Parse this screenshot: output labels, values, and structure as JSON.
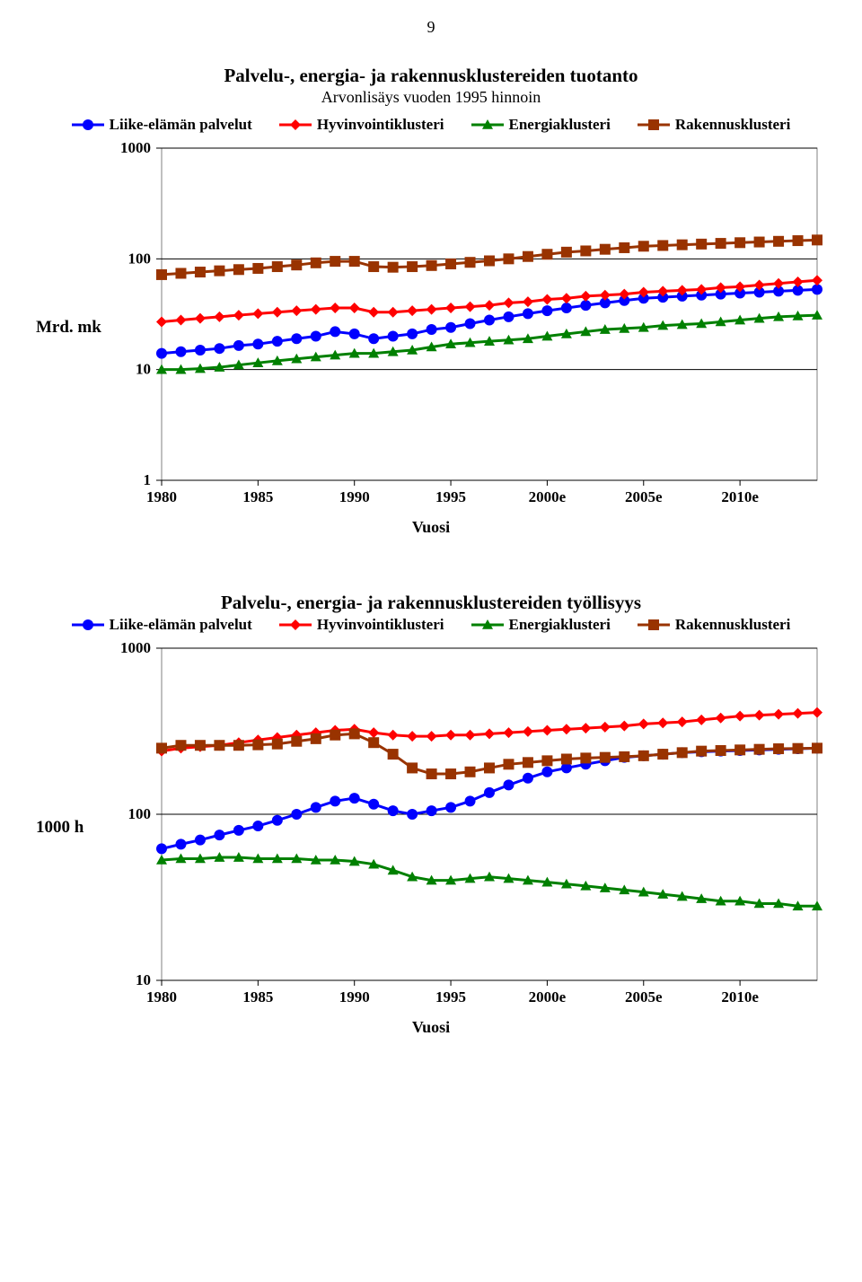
{
  "page_number": "9",
  "chart1": {
    "type": "line",
    "title": "Palvelu-, energia- ja rakennusklustereiden tuotanto",
    "subtitle": "Arvonlisäys vuoden 1995 hinnoin",
    "y_label": "Mrd. mk",
    "x_label": "Vuosi",
    "x_ticks": [
      "1980",
      "1985",
      "1990",
      "1995",
      "2000e",
      "2005e",
      "2010e"
    ],
    "y_ticks": [
      1,
      10,
      100,
      1000
    ],
    "y_tick_labels": [
      "1",
      "10",
      "100",
      "1000"
    ],
    "y_scale": "log",
    "ylim": [
      1,
      1000
    ],
    "xlim": [
      1980,
      2014
    ],
    "x_tick_positions": [
      1980,
      1985,
      1990,
      1995,
      2000,
      2005,
      2010
    ],
    "line_width": 3,
    "marker_size": 6,
    "background_color": "#ffffff",
    "grid_color": "#000000",
    "border_color": "#808080",
    "tick_fontsize": 17,
    "series": [
      {
        "name": "Liike-elämän palvelut",
        "legend_label": "Liike-elämän palvelut",
        "color": "#0000ff",
        "marker": "circle",
        "x": [
          1980,
          1981,
          1982,
          1983,
          1984,
          1985,
          1986,
          1987,
          1988,
          1989,
          1990,
          1991,
          1992,
          1993,
          1994,
          1995,
          1996,
          1997,
          1998,
          1999,
          2000,
          2001,
          2002,
          2003,
          2004,
          2005,
          2006,
          2007,
          2008,
          2009,
          2010,
          2011,
          2012,
          2013,
          2014
        ],
        "y": [
          14,
          14.5,
          15,
          15.5,
          16.5,
          17,
          18,
          19,
          20,
          22,
          21,
          19,
          20,
          21,
          23,
          24,
          26,
          28,
          30,
          32,
          34,
          36,
          38,
          40,
          42,
          44,
          45,
          46,
          47,
          48,
          49,
          50,
          51,
          52,
          53
        ]
      },
      {
        "name": "Hyvinvointiklusteri",
        "legend_label": "Hyvinvointiklusteri",
        "color": "#ff0000",
        "marker": "diamond",
        "x": [
          1980,
          1981,
          1982,
          1983,
          1984,
          1985,
          1986,
          1987,
          1988,
          1989,
          1990,
          1991,
          1992,
          1993,
          1994,
          1995,
          1996,
          1997,
          1998,
          1999,
          2000,
          2001,
          2002,
          2003,
          2004,
          2005,
          2006,
          2007,
          2008,
          2009,
          2010,
          2011,
          2012,
          2013,
          2014
        ],
        "y": [
          27,
          28,
          29,
          30,
          31,
          32,
          33,
          34,
          35,
          36,
          36,
          33,
          33,
          34,
          35,
          36,
          37,
          38,
          40,
          41,
          43,
          44,
          46,
          47,
          48,
          50,
          51,
          52,
          53,
          55,
          56,
          58,
          60,
          62,
          64
        ]
      },
      {
        "name": "Energiaklusteri",
        "legend_label": "Energiaklusteri",
        "color": "#008000",
        "marker": "triangle",
        "x": [
          1980,
          1981,
          1982,
          1983,
          1984,
          1985,
          1986,
          1987,
          1988,
          1989,
          1990,
          1991,
          1992,
          1993,
          1994,
          1995,
          1996,
          1997,
          1998,
          1999,
          2000,
          2001,
          2002,
          2003,
          2004,
          2005,
          2006,
          2007,
          2008,
          2009,
          2010,
          2011,
          2012,
          2013,
          2014
        ],
        "y": [
          10,
          10,
          10.2,
          10.5,
          11,
          11.5,
          12,
          12.5,
          13,
          13.5,
          14,
          14,
          14.5,
          15,
          16,
          17,
          17.5,
          18,
          18.5,
          19,
          20,
          21,
          22,
          23,
          23.5,
          24,
          25,
          25.5,
          26,
          27,
          28,
          29,
          30,
          30.5,
          31
        ]
      },
      {
        "name": "Rakennusklusteri",
        "legend_label": "Rakennusklusteri",
        "color": "#993300",
        "marker": "square",
        "x": [
          1980,
          1981,
          1982,
          1983,
          1984,
          1985,
          1986,
          1987,
          1988,
          1989,
          1990,
          1991,
          1992,
          1993,
          1994,
          1995,
          1996,
          1997,
          1998,
          1999,
          2000,
          2001,
          2002,
          2003,
          2004,
          2005,
          2006,
          2007,
          2008,
          2009,
          2010,
          2011,
          2012,
          2013,
          2014
        ],
        "y": [
          72,
          74,
          76,
          78,
          80,
          82,
          85,
          88,
          92,
          95,
          95,
          85,
          84,
          85,
          87,
          90,
          93,
          96,
          100,
          105,
          110,
          115,
          118,
          122,
          126,
          130,
          132,
          134,
          136,
          138,
          140,
          142,
          144,
          146,
          148
        ]
      }
    ]
  },
  "chart2": {
    "type": "line",
    "title": "Palvelu-, energia- ja rakennusklustereiden työllisyys",
    "y_label": "1000 h",
    "x_label": "Vuosi",
    "x_ticks": [
      "1980",
      "1985",
      "1990",
      "1995",
      "2000e",
      "2005e",
      "2010e"
    ],
    "y_ticks": [
      10,
      100,
      1000
    ],
    "y_tick_labels": [
      "10",
      "100",
      "1000"
    ],
    "y_scale": "log",
    "ylim": [
      10,
      1000
    ],
    "xlim": [
      1980,
      2014
    ],
    "x_tick_positions": [
      1980,
      1985,
      1990,
      1995,
      2000,
      2005,
      2010
    ],
    "line_width": 3,
    "marker_size": 6,
    "background_color": "#ffffff",
    "grid_color": "#000000",
    "border_color": "#808080",
    "tick_fontsize": 17,
    "series": [
      {
        "name": "Liike-elämän palvelut",
        "legend_label": "Liike-elämän palvelut",
        "color": "#0000ff",
        "marker": "circle",
        "x": [
          1980,
          1981,
          1982,
          1983,
          1984,
          1985,
          1986,
          1987,
          1988,
          1989,
          1990,
          1991,
          1992,
          1993,
          1994,
          1995,
          1996,
          1997,
          1998,
          1999,
          2000,
          2001,
          2002,
          2003,
          2004,
          2005,
          2006,
          2007,
          2008,
          2009,
          2010,
          2011,
          2012,
          2013,
          2014
        ],
        "y": [
          62,
          66,
          70,
          75,
          80,
          85,
          92,
          100,
          110,
          120,
          125,
          115,
          105,
          100,
          105,
          110,
          120,
          135,
          150,
          165,
          180,
          190,
          200,
          210,
          220,
          225,
          230,
          235,
          238,
          240,
          242,
          244,
          246,
          248,
          250
        ]
      },
      {
        "name": "Hyvinvointiklusteri",
        "legend_label": "Hyvinvointiklusteri",
        "color": "#ff0000",
        "marker": "diamond",
        "x": [
          1980,
          1981,
          1982,
          1983,
          1984,
          1985,
          1986,
          1987,
          1988,
          1989,
          1990,
          1991,
          1992,
          1993,
          1994,
          1995,
          1996,
          1997,
          1998,
          1999,
          2000,
          2001,
          2002,
          2003,
          2004,
          2005,
          2006,
          2007,
          2008,
          2009,
          2010,
          2011,
          2012,
          2013,
          2014
        ],
        "y": [
          240,
          250,
          255,
          260,
          270,
          280,
          290,
          300,
          310,
          320,
          325,
          310,
          300,
          295,
          295,
          300,
          300,
          305,
          310,
          315,
          320,
          325,
          330,
          335,
          340,
          350,
          355,
          360,
          370,
          380,
          390,
          395,
          400,
          405,
          410
        ]
      },
      {
        "name": "Energiaklusteri",
        "legend_label": "Energiaklusteri",
        "color": "#008000",
        "marker": "triangle",
        "x": [
          1980,
          1981,
          1982,
          1983,
          1984,
          1985,
          1986,
          1987,
          1988,
          1989,
          1990,
          1991,
          1992,
          1993,
          1994,
          1995,
          1996,
          1997,
          1998,
          1999,
          2000,
          2001,
          2002,
          2003,
          2004,
          2005,
          2006,
          2007,
          2008,
          2009,
          2010,
          2011,
          2012,
          2013,
          2014
        ],
        "y": [
          53,
          54,
          54,
          55,
          55,
          54,
          54,
          54,
          53,
          53,
          52,
          50,
          46,
          42,
          40,
          40,
          41,
          42,
          41,
          40,
          39,
          38,
          37,
          36,
          35,
          34,
          33,
          32,
          31,
          30,
          30,
          29,
          29,
          28,
          28
        ]
      },
      {
        "name": "Rakennusklusteri",
        "legend_label": "Rakennusklusteri",
        "color": "#993300",
        "marker": "square",
        "x": [
          1980,
          1981,
          1982,
          1983,
          1984,
          1985,
          1986,
          1987,
          1988,
          1989,
          1990,
          1991,
          1992,
          1993,
          1994,
          1995,
          1996,
          1997,
          1998,
          1999,
          2000,
          2001,
          2002,
          2003,
          2004,
          2005,
          2006,
          2007,
          2008,
          2009,
          2010,
          2011,
          2012,
          2013,
          2014
        ],
        "y": [
          250,
          260,
          260,
          260,
          260,
          262,
          265,
          275,
          285,
          300,
          305,
          270,
          230,
          190,
          175,
          175,
          180,
          190,
          200,
          205,
          210,
          215,
          218,
          220,
          222,
          225,
          230,
          235,
          240,
          242,
          244,
          246,
          248,
          249,
          250
        ]
      }
    ]
  }
}
